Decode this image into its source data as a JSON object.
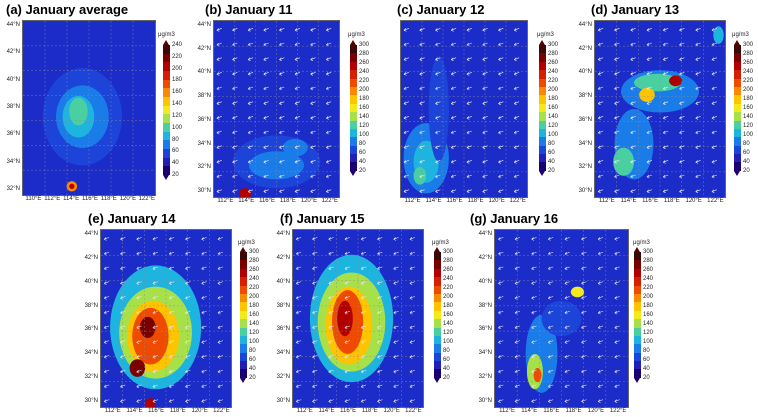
{
  "color_scale": [
    "#ffffff",
    "#3a0a0a",
    "#7a0000",
    "#b10000",
    "#d42000",
    "#ee4b00",
    "#f98a00",
    "#ffc400",
    "#f2ea1a",
    "#a8e04a",
    "#4ad0a0",
    "#1eb4e0",
    "#1a7ce8",
    "#1c44d8",
    "#2020b4",
    "#1a0070"
  ],
  "panels": [
    {
      "id": "a",
      "title": "(a) January average",
      "unit": "μg/m3",
      "ticks": [
        "240",
        "220",
        "200",
        "180",
        "160",
        "140",
        "120",
        "100",
        "80",
        "60",
        "40",
        "20"
      ],
      "lats": [
        "44°N",
        "42°N",
        "40°N",
        "38°N",
        "36°N",
        "34°N",
        "32°N"
      ],
      "lons": [
        "110°E",
        "112°E",
        "114°E",
        "116°E",
        "118°E",
        "120°E",
        "122°E"
      ],
      "winds": false
    },
    {
      "id": "b",
      "title": "(b) January 11",
      "unit": "μg/m3",
      "ticks": [
        "300",
        "280",
        "260",
        "240",
        "220",
        "200",
        "180",
        "160",
        "140",
        "120",
        "100",
        "80",
        "60",
        "40",
        "20"
      ],
      "lats": [
        "44°N",
        "42°N",
        "40°N",
        "38°N",
        "36°N",
        "34°N",
        "32°N",
        "30°N"
      ],
      "lons": [
        "112°E",
        "114°E",
        "116°E",
        "118°E",
        "120°E",
        "122°E"
      ],
      "winds": true
    },
    {
      "id": "c",
      "title": "(c) January 12",
      "unit": "μg/m3",
      "ticks": [
        "300",
        "280",
        "260",
        "240",
        "220",
        "200",
        "180",
        "160",
        "140",
        "120",
        "100",
        "80",
        "60",
        "40",
        "20"
      ],
      "lats": [],
      "lons": [
        "112°E",
        "114°E",
        "116°E",
        "118°E",
        "120°E",
        "122°E"
      ],
      "winds": true
    },
    {
      "id": "d",
      "title": "(d) January 13",
      "unit": "μg/m3",
      "ticks": [
        "300",
        "280",
        "260",
        "240",
        "220",
        "200",
        "180",
        "160",
        "140",
        "120",
        "100",
        "80",
        "60",
        "40",
        "20"
      ],
      "lats": [
        "44°N",
        "42°N",
        "40°N",
        "38°N",
        "36°N",
        "34°N",
        "32°N",
        "30°N"
      ],
      "lons": [
        "112°E",
        "114°E",
        "116°E",
        "118°E",
        "120°E",
        "122°E"
      ],
      "winds": true
    },
    {
      "id": "e",
      "title": "(e) January 14",
      "unit": "μg/m3",
      "ticks": [
        "300",
        "280",
        "260",
        "240",
        "220",
        "200",
        "180",
        "160",
        "140",
        "120",
        "100",
        "80",
        "60",
        "40",
        "20"
      ],
      "lats": [
        "44°N",
        "42°N",
        "40°N",
        "38°N",
        "36°N",
        "34°N",
        "32°N",
        "30°N"
      ],
      "lons": [
        "112°E",
        "114°E",
        "116°E",
        "118°E",
        "120°E",
        "122°E"
      ],
      "winds": true
    },
    {
      "id": "f",
      "title": "(f) January 15",
      "unit": "μg/m3",
      "ticks": [
        "300",
        "280",
        "260",
        "240",
        "220",
        "200",
        "180",
        "160",
        "140",
        "120",
        "100",
        "80",
        "60",
        "40",
        "20"
      ],
      "lats": [
        "44°N",
        "42°N",
        "40°N",
        "38°N",
        "36°N",
        "34°N",
        "32°N",
        "30°N"
      ],
      "lons": [
        "112°E",
        "114°E",
        "116°E",
        "118°E",
        "120°E",
        "122°E"
      ],
      "winds": true
    },
    {
      "id": "g",
      "title": "(g) January 16",
      "unit": "μg/m3",
      "ticks": [
        "300",
        "280",
        "260",
        "240",
        "220",
        "200",
        "180",
        "160",
        "140",
        "120",
        "100",
        "80",
        "60",
        "40",
        "20"
      ],
      "lats": [
        "44°N",
        "42°N",
        "40°N",
        "38°N",
        "36°N",
        "34°N",
        "32°N",
        "30°N"
      ],
      "lons": [
        "112°E",
        "114°E",
        "116°E",
        "118°E",
        "120°E",
        "122°E"
      ],
      "winds": true
    }
  ]
}
